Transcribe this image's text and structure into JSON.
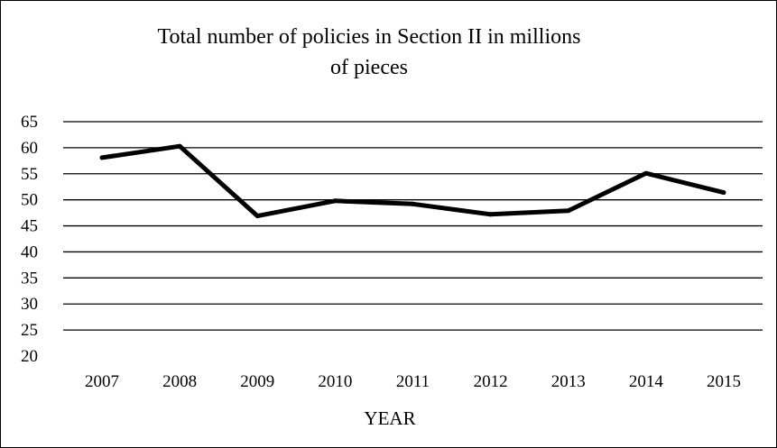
{
  "chart_data": {
    "type": "line",
    "title_lines": [
      "Total number of policies in Section II in millions",
      "of pieces"
    ],
    "xlabel": "YEAR",
    "ylabel": "",
    "categories": [
      "2007",
      "2008",
      "2009",
      "2010",
      "2011",
      "2012",
      "2013",
      "2014",
      "2015"
    ],
    "series": [
      {
        "values": [
          58.1,
          60.3,
          46.9,
          49.8,
          49.2,
          47.2,
          47.9,
          55.1,
          51.4
        ],
        "color": "#000000"
      }
    ],
    "ylim": [
      20,
      65
    ],
    "yticks": [
      20,
      25,
      30,
      35,
      40,
      45,
      50,
      55,
      60,
      65
    ],
    "grid": true,
    "legend": "none"
  }
}
